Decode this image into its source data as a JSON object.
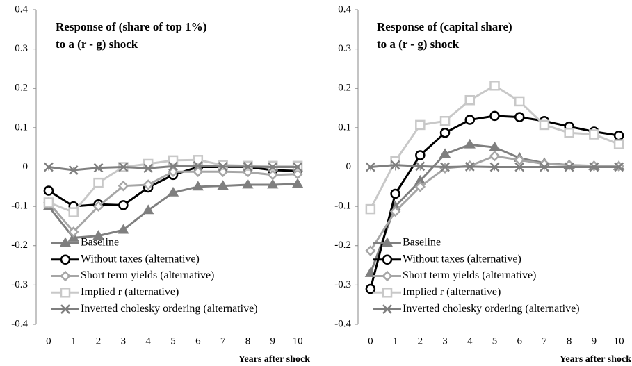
{
  "chart_data": [
    {
      "type": "line",
      "title": [
        "Response of (share of top 1%)",
        "to a (r - g) shock"
      ],
      "xlabel": "Years after shock",
      "x": [
        0,
        1,
        2,
        3,
        4,
        5,
        6,
        7,
        8,
        9,
        10
      ],
      "xlim": [
        -0.5,
        10.5
      ],
      "xticks": [
        0,
        1,
        2,
        3,
        4,
        5,
        6,
        7,
        8,
        9,
        10
      ],
      "ylim": [
        -0.4,
        0.4
      ],
      "yticks": [
        -0.4,
        -0.3,
        -0.2,
        -0.1,
        0,
        0.1,
        0.2,
        0.3,
        0.4
      ],
      "legend": "lower left",
      "series": [
        {
          "name": "Baseline",
          "color": "#7f7f7f",
          "marker": "triangle",
          "values": [
            -0.1,
            -0.18,
            -0.175,
            -0.16,
            -0.11,
            -0.065,
            -0.05,
            -0.048,
            -0.045,
            -0.045,
            -0.043
          ]
        },
        {
          "name": "Without taxes (alternative)",
          "color": "#000000",
          "marker": "circle",
          "values": [
            -0.06,
            -0.1,
            -0.095,
            -0.097,
            -0.052,
            -0.02,
            0,
            0,
            0,
            -0.008,
            -0.01
          ]
        },
        {
          "name": "Short term yields (alternative)",
          "color": "#a6a6a6",
          "marker": "diamond",
          "values": [
            -0.09,
            -0.165,
            -0.1,
            -0.048,
            -0.045,
            -0.012,
            -0.012,
            -0.012,
            -0.013,
            -0.02,
            -0.018
          ]
        },
        {
          "name": "Implied r (alternative)",
          "color": "#c8c8c8",
          "marker": "square",
          "values": [
            -0.09,
            -0.115,
            -0.04,
            0,
            0.008,
            0.017,
            0.018,
            0.005,
            0.003,
            0.003,
            0.003
          ]
        },
        {
          "name": "Inverted cholesky ordering (alternative)",
          "color": "#7f7f7f",
          "marker": "x",
          "values": [
            0,
            -0.008,
            -0.002,
            0,
            -0.003,
            0.002,
            0.003,
            0.001,
            0.001,
            0,
            0
          ]
        }
      ]
    },
    {
      "type": "line",
      "title": [
        "Response of (capital share)",
        "to a (r - g) shock"
      ],
      "xlabel": "Years after shock",
      "x": [
        0,
        1,
        2,
        3,
        4,
        5,
        6,
        7,
        8,
        9,
        10
      ],
      "xlim": [
        -0.5,
        10.5
      ],
      "xticks": [
        0,
        1,
        2,
        3,
        4,
        5,
        6,
        7,
        8,
        9,
        10
      ],
      "ylim": [
        -0.4,
        0.4
      ],
      "yticks": [
        -0.4,
        -0.3,
        -0.2,
        -0.1,
        0,
        0.1,
        0.2,
        0.3,
        0.4
      ],
      "legend": "lower left",
      "series": [
        {
          "name": "Baseline",
          "color": "#7f7f7f",
          "marker": "triangle",
          "values": [
            -0.27,
            -0.1,
            -0.035,
            0.033,
            0.057,
            0.05,
            0.023,
            0.01,
            0.005,
            0.002,
            0.002
          ]
        },
        {
          "name": "Without taxes (alternative)",
          "color": "#000000",
          "marker": "circle",
          "values": [
            -0.31,
            -0.068,
            0.03,
            0.087,
            0.12,
            0.13,
            0.127,
            0.117,
            0.103,
            0.09,
            0.08
          ]
        },
        {
          "name": "Short term yields (alternative)",
          "color": "#a6a6a6",
          "marker": "diamond",
          "values": [
            -0.213,
            -0.113,
            -0.05,
            -0.003,
            0.003,
            0.028,
            0.018,
            0.008,
            0.005,
            0.003,
            0.002
          ]
        },
        {
          "name": "Implied r (alternative)",
          "color": "#c8c8c8",
          "marker": "square",
          "values": [
            -0.107,
            0.015,
            0.107,
            0.117,
            0.17,
            0.207,
            0.167,
            0.107,
            0.087,
            0.083,
            0.058
          ]
        },
        {
          "name": "Inverted cholesky ordering (alternative)",
          "color": "#7f7f7f",
          "marker": "x",
          "values": [
            0,
            0.005,
            0.002,
            0,
            0.001,
            0,
            0,
            0,
            0,
            0,
            0
          ]
        }
      ]
    }
  ]
}
